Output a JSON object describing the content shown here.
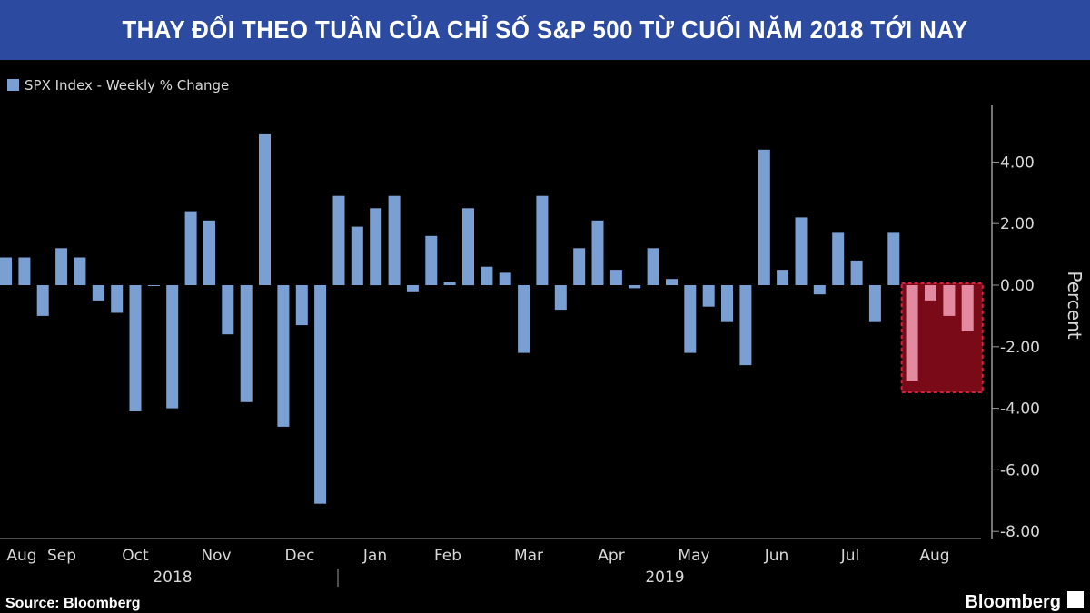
{
  "banner": {
    "title": "THAY ĐỔI THEO TUẦN CỦA CHỈ SỐ S&P 500 TỪ CUỐI NĂM 2018 TỚI NAY"
  },
  "legend": {
    "label": "SPX Index - Weekly % Change"
  },
  "footer": {
    "source": "Source: Bloomberg",
    "brand": "Bloomberg"
  },
  "colors": {
    "positive_bar": "#7a9fd3",
    "highlight_bar": "#e48aa0",
    "highlight_box": "#7a0a18",
    "highlight_border": "#d3223a",
    "banner": "#2b4aa0",
    "background": "#000000"
  },
  "chart_data": {
    "type": "bar",
    "ylabel": "Percent",
    "ylim": [
      -8,
      6
    ],
    "yticks": [
      "4.00",
      "2.00",
      "0.00",
      "-2.00",
      "-4.00",
      "-6.00",
      "-8.00"
    ],
    "ytick_values": [
      4,
      2,
      0,
      -2,
      -4,
      -6,
      -8
    ],
    "month_labels": [
      "Aug",
      "Sep",
      "Oct",
      "Nov",
      "Dec",
      "Jan",
      "Feb",
      "Mar",
      "Apr",
      "May",
      "Jun",
      "Jul",
      "Aug"
    ],
    "year_labels": [
      "2018",
      "2019"
    ],
    "legend_position": "top-left",
    "series": [
      {
        "name": "SPX Index - Weekly % Change",
        "values": [
          0.9,
          0.9,
          -1.0,
          1.2,
          0.9,
          -0.5,
          -0.9,
          -4.1,
          0.0,
          -4.0,
          2.4,
          2.1,
          -1.6,
          -3.8,
          4.9,
          -4.6,
          -1.3,
          -7.1,
          2.9,
          1.9,
          2.5,
          2.9,
          -0.2,
          1.6,
          0.1,
          2.5,
          0.6,
          0.4,
          -2.2,
          2.9,
          -0.8,
          1.2,
          2.1,
          0.5,
          -0.1,
          1.2,
          0.2,
          -2.2,
          -0.7,
          -1.2,
          -2.6,
          4.4,
          0.5,
          2.2,
          -0.3,
          1.7,
          0.8,
          -1.2,
          1.7,
          -3.1,
          -0.5,
          -1.0,
          -1.5
        ]
      }
    ],
    "highlight": {
      "from_index": 49,
      "to_index": 52
    }
  }
}
